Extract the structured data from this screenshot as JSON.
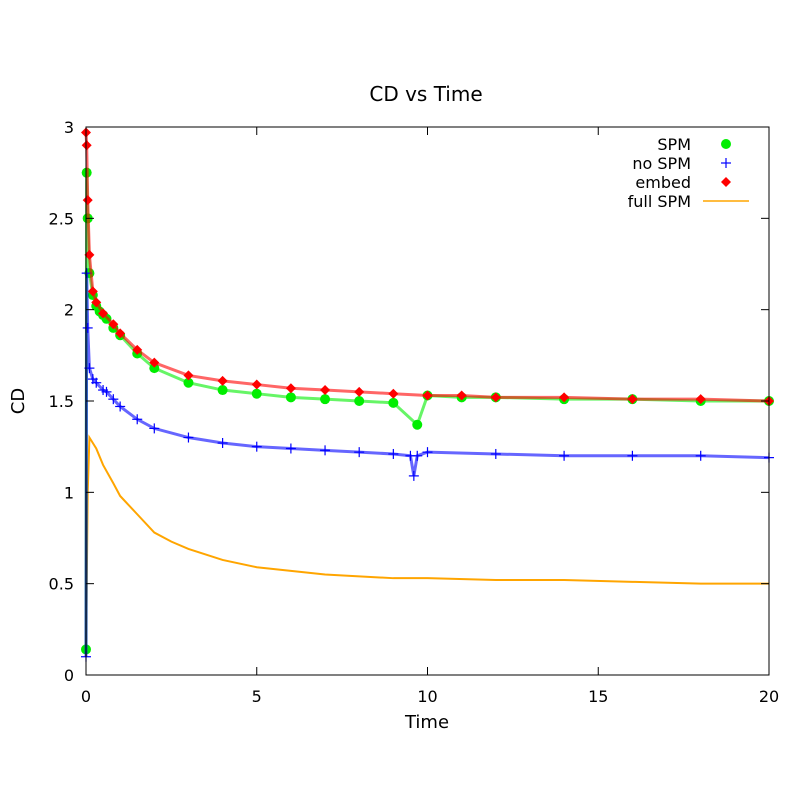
{
  "chart_data": {
    "type": "scatter",
    "title": "CD vs Time",
    "xlabel": "Time",
    "ylabel": "CD",
    "xlim": [
      0,
      20
    ],
    "ylim": [
      0,
      3
    ],
    "xticks": [
      "0",
      "5",
      "10",
      "15",
      "20"
    ],
    "yticks": [
      "0",
      "0.5",
      "1",
      "1.5",
      "2",
      "2.5",
      "3"
    ],
    "grid": false,
    "legend_position": "top-right",
    "series": [
      {
        "name": "SPM",
        "marker": "circle",
        "color": "#00ee00",
        "x": [
          0.0,
          0.02,
          0.05,
          0.1,
          0.2,
          0.3,
          0.4,
          0.5,
          0.6,
          0.8,
          1.0,
          1.5,
          2.0,
          3.0,
          4.0,
          5.0,
          6.0,
          7.0,
          8.0,
          9.0,
          9.7,
          10.0,
          11.0,
          12.0,
          14.0,
          16.0,
          18.0,
          20.0
        ],
        "values": [
          0.14,
          2.75,
          2.5,
          2.2,
          2.08,
          2.02,
          1.99,
          1.97,
          1.95,
          1.9,
          1.86,
          1.76,
          1.68,
          1.6,
          1.56,
          1.54,
          1.52,
          1.51,
          1.5,
          1.49,
          1.37,
          1.53,
          1.52,
          1.52,
          1.51,
          1.51,
          1.5,
          1.5
        ]
      },
      {
        "name": "no SPM",
        "marker": "plus",
        "color": "#0000ff",
        "x": [
          0.0,
          0.02,
          0.05,
          0.1,
          0.2,
          0.3,
          0.5,
          0.6,
          0.8,
          1.0,
          1.5,
          2.0,
          3.0,
          4.0,
          5.0,
          6.0,
          7.0,
          8.0,
          9.0,
          9.5,
          9.6,
          9.7,
          10.0,
          12.0,
          14.0,
          16.0,
          18.0,
          20.0
        ],
        "values": [
          0.1,
          2.2,
          1.9,
          1.68,
          1.62,
          1.6,
          1.56,
          1.55,
          1.51,
          1.47,
          1.4,
          1.35,
          1.3,
          1.27,
          1.25,
          1.24,
          1.23,
          1.22,
          1.21,
          1.2,
          1.09,
          1.2,
          1.22,
          1.21,
          1.2,
          1.2,
          1.2,
          1.19
        ]
      },
      {
        "name": "embed",
        "marker": "diamond",
        "color": "#ff0000",
        "x": [
          0.0,
          0.02,
          0.05,
          0.1,
          0.2,
          0.3,
          0.5,
          0.8,
          1.0,
          1.5,
          2.0,
          3.0,
          4.0,
          5.0,
          6.0,
          7.0,
          8.0,
          9.0,
          10.0,
          11.0,
          12.0,
          14.0,
          16.0,
          18.0,
          20.0
        ],
        "values": [
          2.97,
          2.9,
          2.6,
          2.3,
          2.1,
          2.04,
          1.98,
          1.92,
          1.87,
          1.78,
          1.71,
          1.64,
          1.61,
          1.59,
          1.57,
          1.56,
          1.55,
          1.54,
          1.53,
          1.53,
          1.52,
          1.52,
          1.51,
          1.51,
          1.5
        ]
      },
      {
        "name": "full SPM",
        "marker": "line",
        "color": "#ffa500",
        "x": [
          0.0,
          0.05,
          0.1,
          0.2,
          0.3,
          0.5,
          0.8,
          1.0,
          1.5,
          2.0,
          2.5,
          3.0,
          4.0,
          5.0,
          6.0,
          7.0,
          8.0,
          9.0,
          10.0,
          12.0,
          14.0,
          16.0,
          18.0,
          20.0
        ],
        "values": [
          0.1,
          1.0,
          1.3,
          1.27,
          1.24,
          1.15,
          1.05,
          0.98,
          0.88,
          0.78,
          0.73,
          0.69,
          0.63,
          0.59,
          0.57,
          0.55,
          0.54,
          0.53,
          0.53,
          0.52,
          0.52,
          0.51,
          0.5,
          0.5
        ]
      }
    ]
  }
}
